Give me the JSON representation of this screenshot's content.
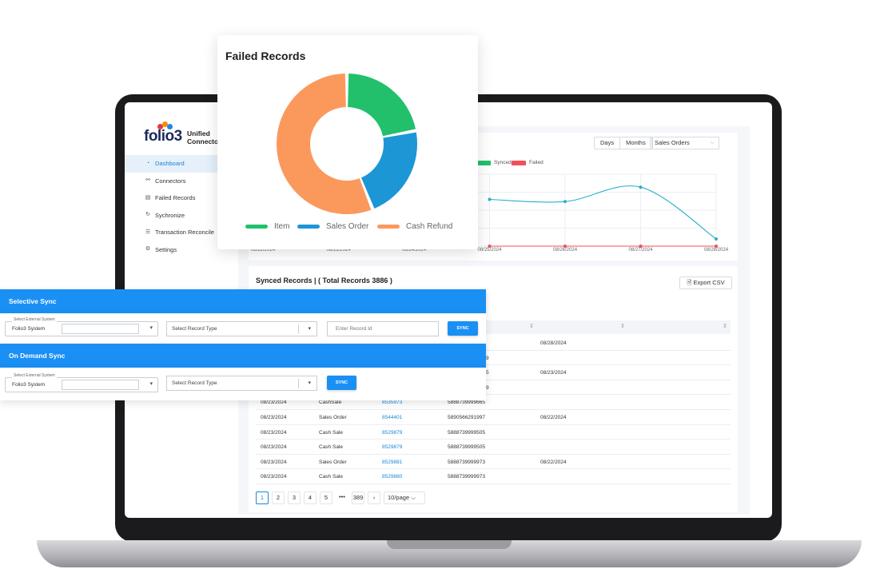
{
  "sidebar": {
    "logo": "folio3",
    "brand_line1": "Unified",
    "brand_line2": "Connector",
    "items": [
      {
        "label": "Dashboard",
        "icon": "dashboard-icon",
        "active": true
      },
      {
        "label": "Connectors",
        "icon": "link-icon"
      },
      {
        "label": "Failed Records",
        "icon": "records-icon"
      },
      {
        "label": "Sychronize",
        "icon": "sync-icon"
      },
      {
        "label": "Transaction Reconcile",
        "icon": "list-icon"
      },
      {
        "label": "Settings",
        "icon": "gear-icon"
      }
    ]
  },
  "chart_controls": {
    "days": "Days",
    "months": "Months",
    "record_type": "Sales Orders"
  },
  "chart_data": [
    {
      "type": "line",
      "title": "",
      "legend": [
        "Synced",
        "Failed"
      ],
      "x": [
        "08/22/2024",
        "08/23/2024",
        "08/24/2024",
        "08/25/2024",
        "08/26/2024",
        "08/27/2024",
        "08/28/2024"
      ],
      "series": [
        {
          "name": "Synced",
          "values": [
            null,
            null,
            null,
            65,
            62,
            82,
            10
          ]
        },
        {
          "name": "Failed",
          "values": [
            null,
            null,
            null,
            0,
            0,
            0,
            0
          ]
        }
      ],
      "colors": {
        "Synced": "#2ab1c7",
        "Failed": "#f0505a"
      }
    },
    {
      "type": "pie",
      "title": "Failed Records",
      "labels": [
        "Item",
        "Sales Order",
        "Cash Refund"
      ],
      "values": [
        22,
        22,
        56
      ],
      "colors": [
        "#22c06b",
        "#1d96d6",
        "#fb995d"
      ]
    }
  ],
  "synced": {
    "title": "Synced Records | ( Total Records 3886 )",
    "export_label": "Export CSV",
    "partial_rows": [
      {
        "date": "08/28/2024",
        "frag": ""
      },
      {
        "date": "",
        "frag": "9"
      },
      {
        "date": "08/23/2024",
        "frag": "5"
      },
      {
        "date": "",
        "frag": "9"
      }
    ],
    "rows": [
      {
        "date": "08/23/2024",
        "type": "CashSale",
        "id": "8535973",
        "ref": "5888739999665",
        "date2": ""
      },
      {
        "date": "08/23/2024",
        "type": "Sales Order",
        "id": "8544401",
        "ref": "5890566291997",
        "date2": "08/22/2024"
      },
      {
        "date": "08/23/2024",
        "type": "Cash Sale",
        "id": "8529879",
        "ref": "5888739999505",
        "date2": ""
      },
      {
        "date": "08/23/2024",
        "type": "Cash Sale",
        "id": "8529879",
        "ref": "5888739999505",
        "date2": ""
      },
      {
        "date": "08/23/2024",
        "type": "Sales Order",
        "id": "8529881",
        "ref": "5888739999973",
        "date2": "08/22/2024"
      },
      {
        "date": "08/23/2024",
        "type": "Cash Sale",
        "id": "8529880",
        "ref": "5888739999973",
        "date2": ""
      }
    ],
    "pages": [
      "1",
      "2",
      "3",
      "4",
      "5",
      "•••",
      "389"
    ],
    "next": "›",
    "per_page": "10/page"
  },
  "selective_sync": {
    "title": "Selective Sync",
    "system_legend": "Select External System",
    "system_value": "Folio3 System",
    "record_type_placeholder": "Select Record Type",
    "record_id_placeholder": "Enter Record Id",
    "sync_label": "SYNC"
  },
  "on_demand_sync": {
    "title": "On Demand Sync",
    "system_legend": "Select External System",
    "system_value": "Folio3 System",
    "record_type_placeholder": "Select Record Type",
    "sync_label": "SYNC"
  }
}
